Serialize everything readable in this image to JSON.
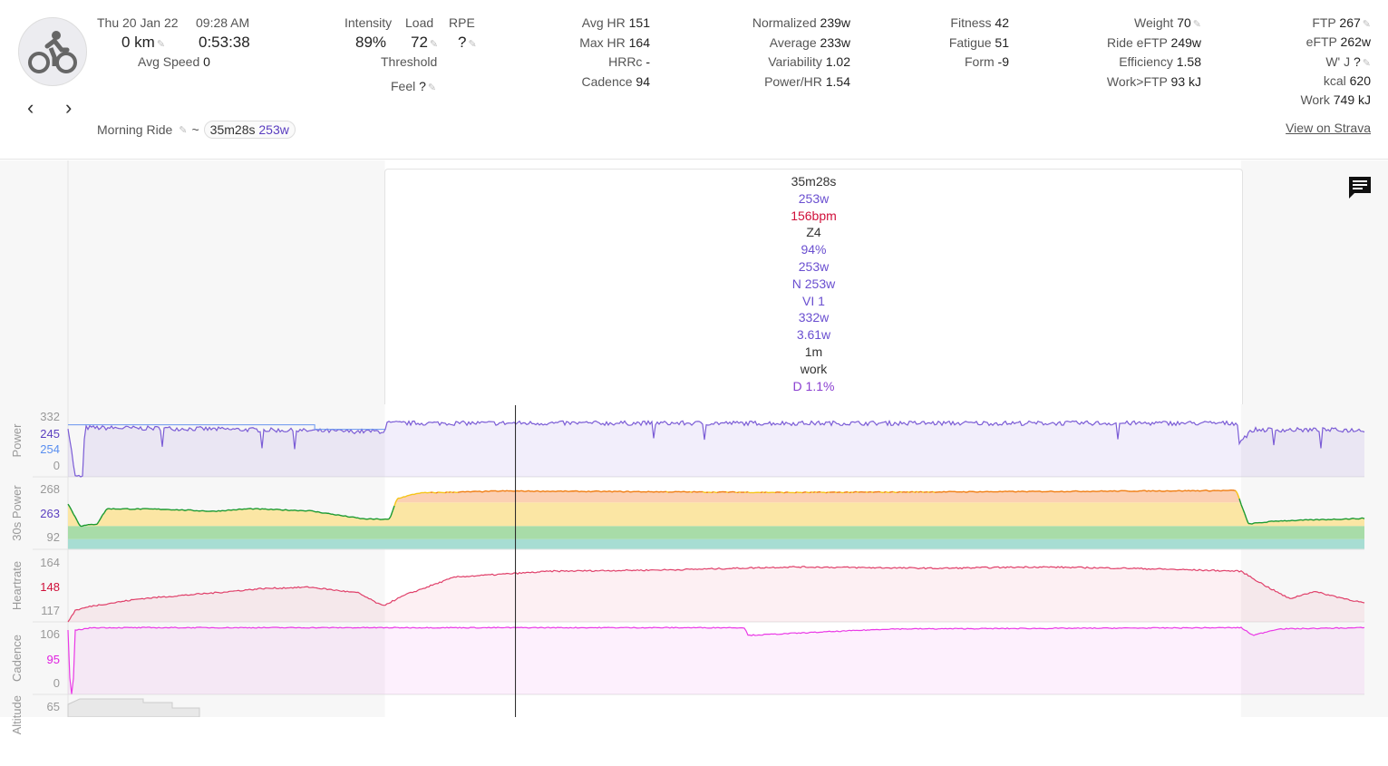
{
  "activity": {
    "date": "Thu 20 Jan 22",
    "time": "09:28 AM",
    "distance": "0 km",
    "duration": "0:53:38",
    "avg_speed_label": "Avg Speed",
    "avg_speed": "0",
    "name": "Morning Ride",
    "tilde": "~",
    "interval_time": "35m28s",
    "interval_power": "253w"
  },
  "load": {
    "intensity_label": "Intensity",
    "intensity": "89%",
    "load_label": "Load",
    "load": "72",
    "rpe_label": "RPE",
    "rpe": "?",
    "threshold_label": "Threshold",
    "feel_label": "Feel",
    "feel": "?"
  },
  "hr": [
    {
      "label": "Avg HR",
      "value": "151"
    },
    {
      "label": "Max HR",
      "value": "164"
    },
    {
      "label": "HRRc",
      "value": "-"
    },
    {
      "label": "Cadence",
      "value": "94"
    }
  ],
  "power": [
    {
      "label": "Normalized",
      "value": "239w"
    },
    {
      "label": "Average",
      "value": "233w"
    },
    {
      "label": "Variability",
      "value": "1.02"
    },
    {
      "label": "Power/HR",
      "value": "1.54"
    }
  ],
  "fitness": [
    {
      "label": "Fitness",
      "value": "42"
    },
    {
      "label": "Fatigue",
      "value": "51"
    },
    {
      "label": "Form",
      "value": "-9"
    }
  ],
  "weight": [
    {
      "label": "Weight",
      "value": "70"
    },
    {
      "label": "Ride eFTP",
      "value": "249w"
    },
    {
      "label": "Efficiency",
      "value": "1.58"
    },
    {
      "label": "Work>FTP",
      "value": "93 kJ"
    }
  ],
  "ftp": [
    {
      "label": "FTP",
      "value": "267"
    },
    {
      "label": "eFTP",
      "value": "262w"
    },
    {
      "label": "W' J",
      "value": "?"
    },
    {
      "label": "kcal",
      "value": "620"
    },
    {
      "label": "Work",
      "value": "749 kJ"
    }
  ],
  "strava_link": "View on Strava",
  "tooltip": [
    "35m28s",
    "253w",
    "156bpm",
    "Z4",
    "94%",
    "253w",
    "N 253w",
    "VI 1",
    "332w",
    "3.61w",
    "1m",
    "work",
    "D 1.1%"
  ],
  "tooltip_colors": [
    "#333",
    "#6a4fd0",
    "#d0103a",
    "#333",
    "#6a4fd0",
    "#6a4fd0",
    "#6a4fd0",
    "#6a4fd0",
    "#6a4fd0",
    "#6a4fd0",
    "#333",
    "#333",
    "#8a3fd0"
  ],
  "panels": [
    {
      "name": "Power",
      "ticks": [
        "332",
        "245",
        "254",
        "0"
      ],
      "tick_colors": [
        "#999",
        "#5b3fc0",
        "#5a8ff0",
        "#999"
      ]
    },
    {
      "name": "30s Power",
      "ticks": [
        "268",
        "263",
        "92"
      ],
      "tick_colors": [
        "#999",
        "#5b3fc0",
        "#999"
      ]
    },
    {
      "name": "Heartrate",
      "ticks": [
        "164",
        "148",
        "117"
      ],
      "tick_colors": [
        "#999",
        "#d0103a",
        "#999"
      ]
    },
    {
      "name": "Cadence",
      "ticks": [
        "106",
        "95",
        "0"
      ],
      "tick_colors": [
        "#999",
        "#e020e0",
        "#999"
      ]
    },
    {
      "name": "Altitude",
      "ticks": [
        "65"
      ],
      "tick_colors": [
        "#999"
      ]
    }
  ],
  "chart_data": {
    "type": "line",
    "x_unit": "min",
    "xlim": [
      0,
      53.6
    ],
    "selection": [
      13.1,
      48.5
    ],
    "cursor": 18.5,
    "power": {
      "ylim": [
        0,
        332
      ],
      "points": [
        [
          0,
          245
        ],
        [
          0.3,
          0
        ],
        [
          0.6,
          0
        ],
        [
          0.7,
          240
        ],
        [
          5,
          235
        ],
        [
          10,
          225
        ],
        [
          11.5,
          222
        ],
        [
          13.1,
          222
        ],
        [
          13.2,
          262
        ],
        [
          48.4,
          262
        ],
        [
          48.5,
          180
        ],
        [
          49,
          230
        ],
        [
          53.6,
          228
        ]
      ],
      "interval_avg": [
        [
          0,
          254
        ],
        [
          10.2,
          254
        ],
        [
          10.2,
          232
        ],
        [
          13.1,
          232
        ]
      ]
    },
    "power30": {
      "ylim": [
        0,
        268
      ],
      "points": [
        [
          0,
          180
        ],
        [
          0.5,
          92
        ],
        [
          1.2,
          100
        ],
        [
          1.6,
          160
        ],
        [
          4,
          158
        ],
        [
          6,
          150
        ],
        [
          7.5,
          160
        ],
        [
          10,
          152
        ],
        [
          12.2,
          120
        ],
        [
          13.3,
          118
        ],
        [
          13.6,
          200
        ],
        [
          14.5,
          222
        ],
        [
          18,
          230
        ],
        [
          30,
          224
        ],
        [
          40,
          228
        ],
        [
          48.3,
          232
        ],
        [
          48.8,
          100
        ],
        [
          50,
          112
        ],
        [
          53.6,
          122
        ]
      ],
      "zones": [
        92,
        140,
        185,
        225
      ]
    },
    "heartrate": {
      "ylim": [
        117,
        164
      ],
      "points": [
        [
          0,
          117
        ],
        [
          0.3,
          125
        ],
        [
          1,
          128
        ],
        [
          3,
          133
        ],
        [
          6,
          137
        ],
        [
          8,
          140
        ],
        [
          10,
          141
        ],
        [
          12,
          137
        ],
        [
          13,
          128
        ],
        [
          14,
          136
        ],
        [
          16,
          148
        ],
        [
          20,
          152
        ],
        [
          25,
          153
        ],
        [
          30,
          155
        ],
        [
          36,
          154
        ],
        [
          40,
          155
        ],
        [
          44,
          154
        ],
        [
          48.5,
          152
        ],
        [
          49.5,
          142
        ],
        [
          50.5,
          133
        ],
        [
          51.5,
          138
        ],
        [
          53.6,
          130
        ]
      ]
    },
    "cadence": {
      "ylim": [
        0,
        106
      ],
      "points": [
        [
          0,
          100
        ],
        [
          0.1,
          0
        ],
        [
          0.2,
          0
        ],
        [
          0.3,
          100
        ],
        [
          1,
          104
        ],
        [
          13,
          104
        ],
        [
          28,
          104
        ],
        [
          28.1,
          92
        ],
        [
          34,
          102
        ],
        [
          48.5,
          104
        ],
        [
          49,
          92
        ],
        [
          50,
          102
        ],
        [
          53.6,
          104
        ]
      ]
    }
  }
}
